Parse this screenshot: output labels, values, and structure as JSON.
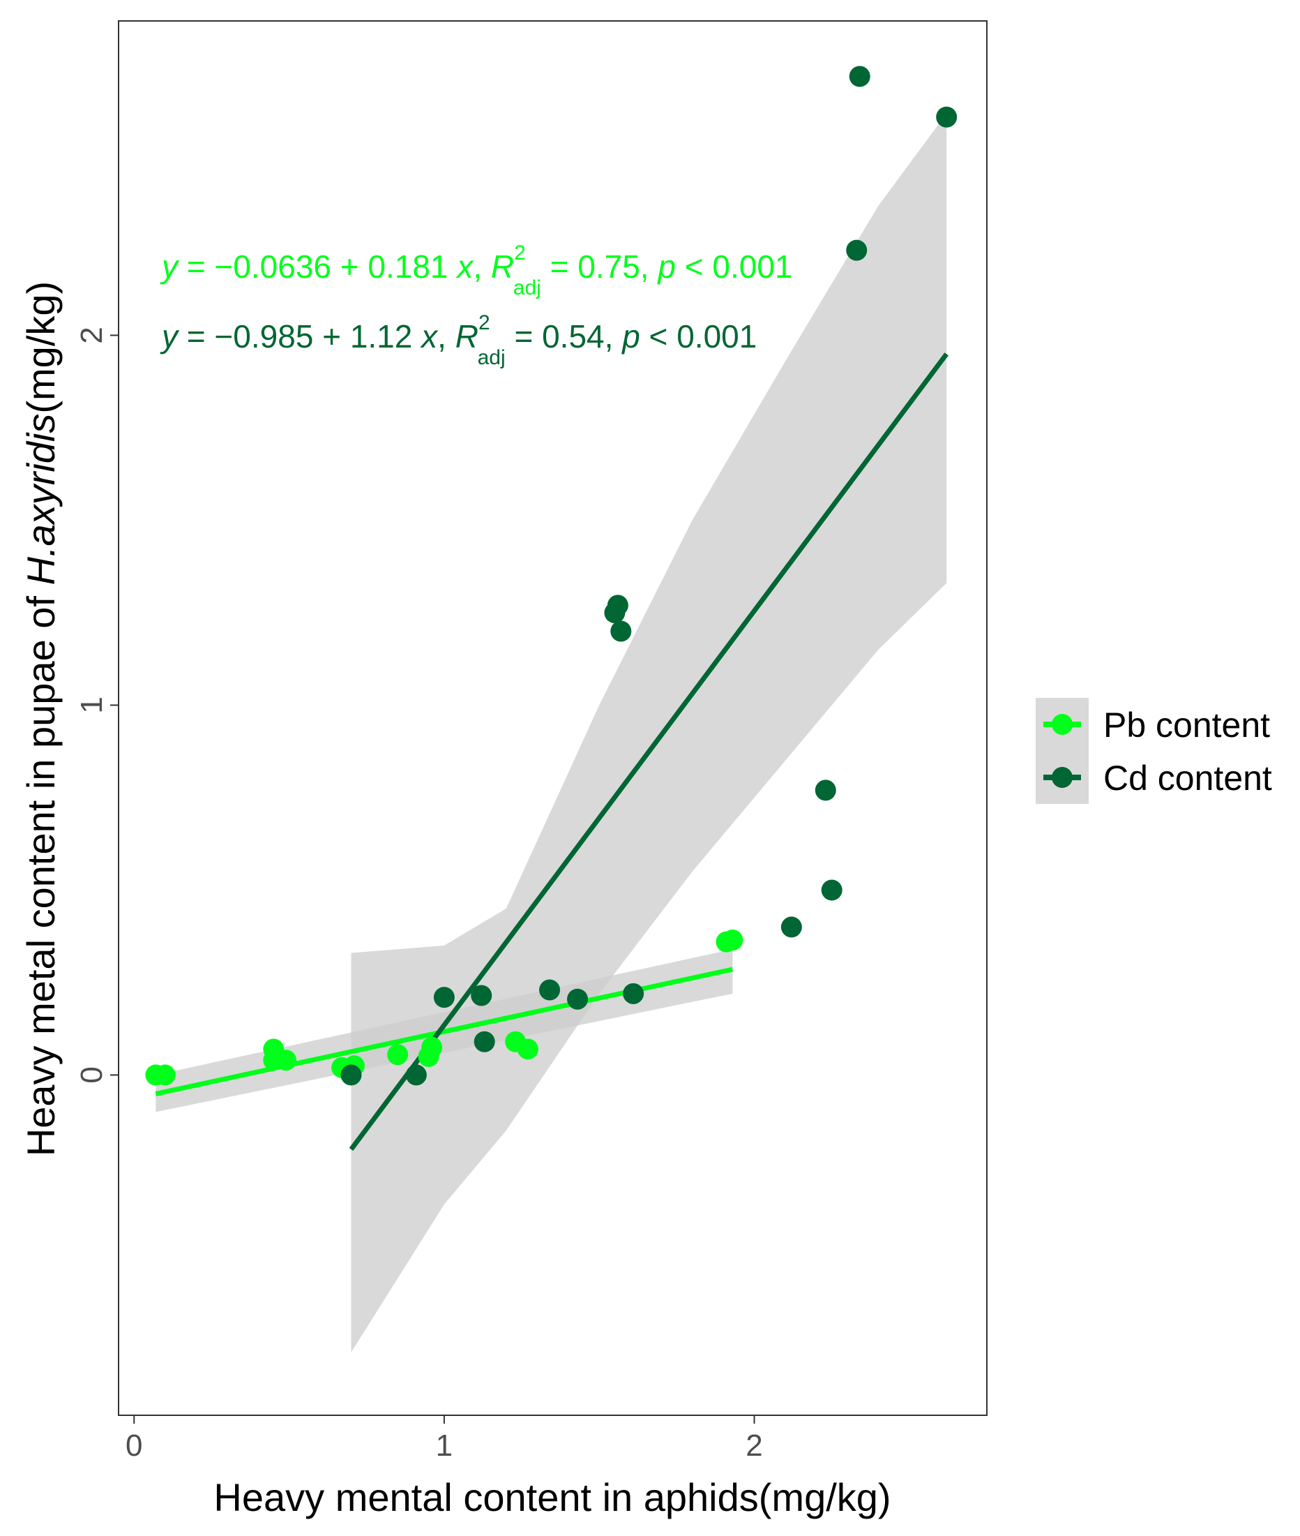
{
  "chart_data": {
    "type": "scatter",
    "xlabel": "Heavy mental content in aphids(mg/kg)",
    "ylabel_prefix": "Heavy metal content in pupae of ",
    "ylabel_species": "H.axyridis",
    "ylabel_suffix": "(mg/kg)",
    "xlim": [
      -0.05,
      2.75
    ],
    "ylim": [
      -0.92,
      2.85
    ],
    "x_ticks": [
      0,
      1,
      2
    ],
    "y_ticks": [
      0,
      1,
      2
    ],
    "x_tick_labels": [
      "0",
      "1",
      "2"
    ],
    "y_tick_labels": [
      "0",
      "1",
      "2"
    ],
    "grid": false,
    "legend_position": "right",
    "series": [
      {
        "name": "Pb content",
        "color": "#00ff1a",
        "points": [
          {
            "x": 0.07,
            "y": 0.0
          },
          {
            "x": 0.1,
            "y": 0.0
          },
          {
            "x": 0.45,
            "y": 0.07
          },
          {
            "x": 0.45,
            "y": 0.04
          },
          {
            "x": 0.49,
            "y": 0.04
          },
          {
            "x": 0.67,
            "y": 0.02
          },
          {
            "x": 0.71,
            "y": 0.025
          },
          {
            "x": 0.85,
            "y": 0.055
          },
          {
            "x": 0.95,
            "y": 0.05
          },
          {
            "x": 0.96,
            "y": 0.075
          },
          {
            "x": 1.23,
            "y": 0.09
          },
          {
            "x": 1.27,
            "y": 0.07
          },
          {
            "x": 1.91,
            "y": 0.36
          },
          {
            "x": 1.93,
            "y": 0.365
          }
        ],
        "fit": {
          "intercept": -0.0636,
          "slope": 0.181,
          "x_range": [
            0.07,
            1.93
          ],
          "se_band": [
            [
              0.07,
              -0.1,
              0.0
            ],
            [
              1.93,
              0.22,
              0.34
            ]
          ]
        },
        "equation": {
          "lhs": "y",
          "body1": " = −0.0636 + 0.181 ",
          "x": "x",
          "sep": ", ",
          "R": "R",
          "sup": "2",
          "sub": "adj",
          "body2": " = 0.75, ",
          "p": "p",
          "body3": " < 0.001"
        }
      },
      {
        "name": "Cd content",
        "color": "#006633",
        "points": [
          {
            "x": 0.7,
            "y": 0.0
          },
          {
            "x": 0.91,
            "y": 0.0
          },
          {
            "x": 1.0,
            "y": 0.21
          },
          {
            "x": 1.12,
            "y": 0.215
          },
          {
            "x": 1.13,
            "y": 0.09
          },
          {
            "x": 1.34,
            "y": 0.23
          },
          {
            "x": 1.43,
            "y": 0.205
          },
          {
            "x": 1.61,
            "y": 0.22
          },
          {
            "x": 1.55,
            "y": 1.25
          },
          {
            "x": 1.56,
            "y": 1.27
          },
          {
            "x": 1.57,
            "y": 1.2
          },
          {
            "x": 2.12,
            "y": 0.4
          },
          {
            "x": 2.23,
            "y": 0.77
          },
          {
            "x": 2.25,
            "y": 0.5
          },
          {
            "x": 2.33,
            "y": 2.23
          },
          {
            "x": 2.34,
            "y": 2.7
          },
          {
            "x": 2.62,
            "y": 2.59
          }
        ],
        "fit": {
          "intercept": -0.985,
          "slope": 1.12,
          "x_range": [
            0.7,
            2.62
          ],
          "se_band": [
            [
              0.7,
              -0.75,
              0.33
            ],
            [
              1.0,
              -0.35,
              0.35
            ],
            [
              1.2,
              -0.15,
              0.45
            ],
            [
              1.5,
              0.22,
              1.0
            ],
            [
              1.8,
              0.55,
              1.5
            ],
            [
              2.1,
              0.85,
              1.93
            ],
            [
              2.4,
              1.15,
              2.35
            ],
            [
              2.62,
              1.33,
              2.6
            ]
          ]
        },
        "equation": {
          "lhs": "y",
          "body1": " = −0.985 + 1.12 ",
          "x": "x",
          "sep": ", ",
          "R": "R",
          "sup": "2",
          "sub": "adj",
          "body2": " = 0.54, ",
          "p": "p",
          "body3": " < 0.001"
        }
      }
    ],
    "band_color": "#cccccc"
  },
  "legend": {
    "items": [
      {
        "label": "Pb content",
        "color": "#00ff1a"
      },
      {
        "label": "Cd content",
        "color": "#006633"
      }
    ]
  }
}
